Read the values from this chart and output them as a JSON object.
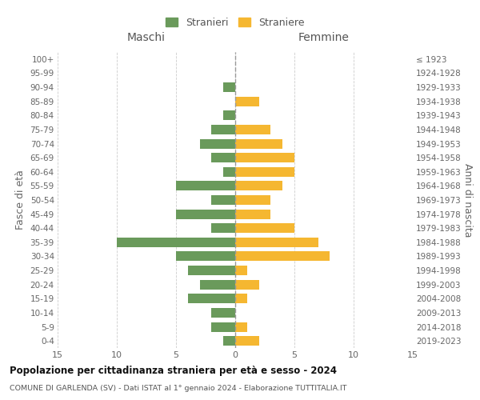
{
  "age_groups": [
    "100+",
    "95-99",
    "90-94",
    "85-89",
    "80-84",
    "75-79",
    "70-74",
    "65-69",
    "60-64",
    "55-59",
    "50-54",
    "45-49",
    "40-44",
    "35-39",
    "30-34",
    "25-29",
    "20-24",
    "15-19",
    "10-14",
    "5-9",
    "0-4"
  ],
  "birth_years": [
    "≤ 1923",
    "1924-1928",
    "1929-1933",
    "1934-1938",
    "1939-1943",
    "1944-1948",
    "1949-1953",
    "1954-1958",
    "1959-1963",
    "1964-1968",
    "1969-1973",
    "1974-1978",
    "1979-1983",
    "1984-1988",
    "1989-1993",
    "1994-1998",
    "1999-2003",
    "2004-2008",
    "2009-2013",
    "2014-2018",
    "2019-2023"
  ],
  "maschi": [
    0,
    0,
    1,
    0,
    1,
    2,
    3,
    2,
    1,
    5,
    2,
    5,
    2,
    10,
    5,
    4,
    3,
    4,
    2,
    2,
    1
  ],
  "femmine": [
    0,
    0,
    0,
    2,
    0,
    3,
    4,
    5,
    5,
    4,
    3,
    3,
    5,
    7,
    8,
    1,
    2,
    1,
    0,
    1,
    2
  ],
  "maschi_color": "#6a9a5b",
  "femmine_color": "#f5b731",
  "title": "Popolazione per cittadinanza straniera per età e sesso - 2024",
  "subtitle": "COMUNE DI GARLENDA (SV) - Dati ISTAT al 1° gennaio 2024 - Elaborazione TUTTITALIA.IT",
  "left_label": "Maschi",
  "right_label": "Femmine",
  "ylabel_left": "Fasce di età",
  "ylabel_right": "Anni di nascita",
  "legend_maschi": "Stranieri",
  "legend_femmine": "Straniere",
  "xlim": 15,
  "background_color": "#ffffff",
  "grid_color": "#cccccc"
}
